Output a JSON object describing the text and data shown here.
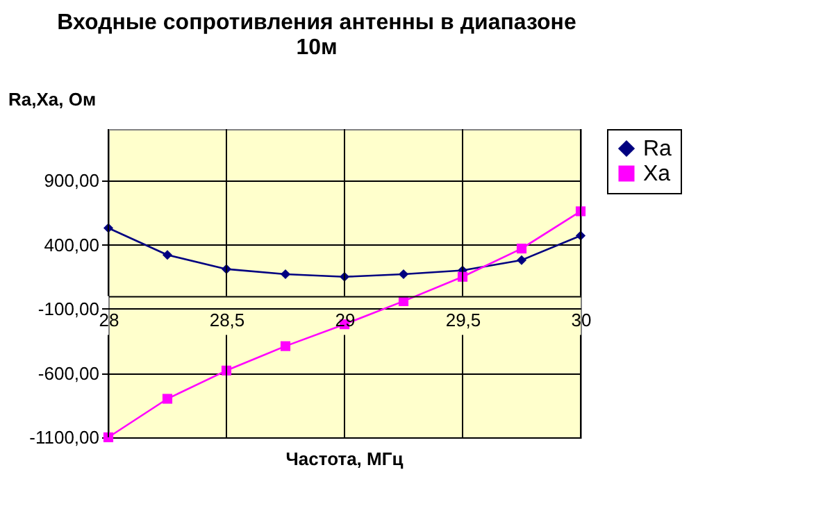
{
  "chart_data": {
    "type": "line",
    "title": "Входные сопротивления антенны в диапазоне 10м",
    "xlabel": "Частота, МГц",
    "ylabel": "Ra,Xa, Ом",
    "x": [
      28,
      28.25,
      28.5,
      28.75,
      29,
      29.25,
      29.5,
      29.75,
      30
    ],
    "series": [
      {
        "name": "Ra",
        "color": "#000080",
        "marker": "diamond",
        "values": [
          530,
          320,
          210,
          170,
          150,
          170,
          200,
          280,
          470
        ]
      },
      {
        "name": "Xa",
        "color": "#ff00ff",
        "marker": "square",
        "values": [
          -1100,
          -800,
          -580,
          -390,
          -220,
          -40,
          150,
          370,
          660
        ]
      }
    ],
    "xlim": [
      28,
      30
    ],
    "xticks": [
      28,
      {
        "value": 28.5,
        "label": "28,5"
      },
      29,
      {
        "value": 29.5,
        "label": "29,5"
      },
      30
    ],
    "ylim": [
      -1100,
      1300
    ],
    "yticks": [
      {
        "value": -1100,
        "label": "-1100,00"
      },
      {
        "value": -600,
        "label": "-600,00"
      },
      {
        "value": -100,
        "label": "-100,00"
      },
      {
        "value": 400,
        "label": "400,00"
      },
      {
        "value": 900,
        "label": "900,00"
      }
    ],
    "grid": true,
    "legend": "right",
    "line_style": "solid"
  }
}
